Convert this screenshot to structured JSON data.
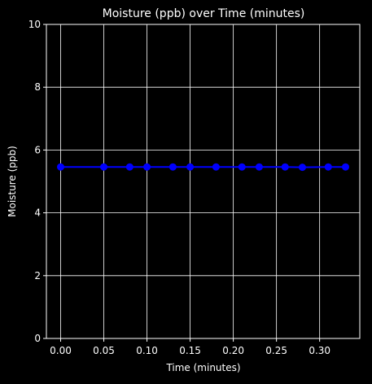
{
  "colors": {
    "background": "#000000",
    "foreground": "#ffffff",
    "grid": "#ffffff",
    "series": "#0000ff"
  },
  "chart_data": {
    "type": "line",
    "title": "Moisture (ppb) over Time (minutes)",
    "xlabel": "Time (minutes)",
    "ylabel": "Moisture (ppb)",
    "xlim": [
      -0.0165,
      0.3465
    ],
    "ylim": [
      0,
      10
    ],
    "xticks": [
      0.0,
      0.05,
      0.1,
      0.15,
      0.2,
      0.25,
      0.3
    ],
    "xtick_labels": [
      "0.00",
      "0.05",
      "0.10",
      "0.15",
      "0.20",
      "0.25",
      "0.30"
    ],
    "yticks": [
      0,
      2,
      4,
      6,
      8,
      10
    ],
    "ytick_labels": [
      "0",
      "2",
      "4",
      "6",
      "8",
      "10"
    ],
    "grid": true,
    "markers": true,
    "series": [
      {
        "x": [
          0.0,
          0.05,
          0.08,
          0.1,
          0.13,
          0.15,
          0.18,
          0.21,
          0.23,
          0.26,
          0.28,
          0.31,
          0.33
        ],
        "y": [
          5.46,
          5.46,
          5.46,
          5.46,
          5.46,
          5.46,
          5.46,
          5.46,
          5.46,
          5.46,
          5.45,
          5.46,
          5.46
        ]
      }
    ]
  }
}
